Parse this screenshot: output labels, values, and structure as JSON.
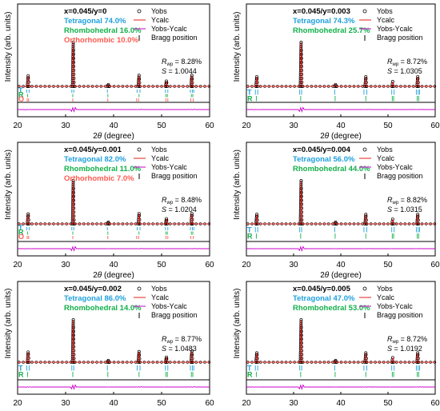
{
  "colors": {
    "obs": "#000000",
    "calc": "#e0201b",
    "diff": "#cc00cc",
    "tetragonal": "#1fa0dc",
    "rhombohedral": "#12b04a",
    "orthorhombic": "#ff5a50"
  },
  "legend": {
    "obs": "Yobs",
    "calc": "Ycalc",
    "diff": "Yobs-Ycalc",
    "bragg": "Bragg position"
  },
  "axis": {
    "ylabel": "Intensity (arb. units)",
    "xlabel_theta": "θ",
    "xlabel_prefix": "2",
    "xlabel_suffix": " (degree)",
    "ticks": [
      "20",
      "30",
      "40",
      "50",
      "60"
    ]
  },
  "phase_letters": {
    "T": "T",
    "R": "R",
    "O": "O"
  },
  "chart_data": [
    {
      "type": "line",
      "sample": "x=0.045/y=0",
      "x_range": [
        20,
        60
      ],
      "phases": [
        {
          "label": "Tetragonal 74.0%",
          "name": "Tetragonal",
          "fraction": 74.0
        },
        {
          "label": "Rhombohedral 16.0%",
          "name": "Rhombohedral",
          "fraction": 16.0
        },
        {
          "label": "Orthorhombic 10.0%",
          "name": "Orthorhombic",
          "fraction": 10.0
        }
      ],
      "rwp_value": "= 8.28%",
      "s_value": "= 1.0044",
      "peaks": [
        {
          "pos": 22.2,
          "height": 0.24
        },
        {
          "pos": 31.6,
          "height": 1.0
        },
        {
          "pos": 38.9,
          "height": 0.04
        },
        {
          "pos": 45.3,
          "height": 0.25
        },
        {
          "pos": 51.0,
          "height": 0.12
        },
        {
          "pos": 56.3,
          "height": 0.25
        }
      ]
    },
    {
      "type": "line",
      "sample": "x=0.045/y=0.003",
      "x_range": [
        20,
        60
      ],
      "phases": [
        {
          "label": "Tetragonal 74.3%",
          "name": "Tetragonal",
          "fraction": 74.3
        },
        {
          "label": "Rhombohedral 25.7%",
          "name": "Rhombohedral",
          "fraction": 25.7
        }
      ],
      "rwp_value": "= 8.72%",
      "s_value": "= 1.0305",
      "peaks": [
        {
          "pos": 22.2,
          "height": 0.22
        },
        {
          "pos": 31.6,
          "height": 1.0
        },
        {
          "pos": 38.9,
          "height": 0.04
        },
        {
          "pos": 45.3,
          "height": 0.22
        },
        {
          "pos": 51.0,
          "height": 0.11
        },
        {
          "pos": 56.3,
          "height": 0.22
        }
      ]
    },
    {
      "type": "line",
      "sample": "x=0.045/y=0.001",
      "x_range": [
        20,
        60
      ],
      "phases": [
        {
          "label": "Tetragonal 82.0%",
          "name": "Tetragonal",
          "fraction": 82.0
        },
        {
          "label": "Rhombohedral 11.0%",
          "name": "Rhombohedral",
          "fraction": 11.0
        },
        {
          "label": "Orthorhombic 7.0%",
          "name": "Orthorhombic",
          "fraction": 7.0
        }
      ],
      "rwp_value": "= 8.48%",
      "s_value": "= 1.0204",
      "peaks": [
        {
          "pos": 22.2,
          "height": 0.23
        },
        {
          "pos": 31.6,
          "height": 1.0
        },
        {
          "pos": 38.9,
          "height": 0.04
        },
        {
          "pos": 45.3,
          "height": 0.24
        },
        {
          "pos": 51.0,
          "height": 0.12
        },
        {
          "pos": 56.3,
          "height": 0.24
        }
      ]
    },
    {
      "type": "line",
      "sample": "x=0.045/y=0.004",
      "x_range": [
        20,
        60
      ],
      "phases": [
        {
          "label": "Tetragonal 56.0%",
          "name": "Tetragonal",
          "fraction": 56.0
        },
        {
          "label": "Rhombohedral 44.0%",
          "name": "Rhombohedral",
          "fraction": 44.0
        }
      ],
      "rwp_value": "= 8.82%",
      "s_value": "= 1.0315",
      "peaks": [
        {
          "pos": 22.2,
          "height": 0.22
        },
        {
          "pos": 31.6,
          "height": 1.0
        },
        {
          "pos": 38.9,
          "height": 0.04
        },
        {
          "pos": 45.3,
          "height": 0.22
        },
        {
          "pos": 51.0,
          "height": 0.11
        },
        {
          "pos": 56.3,
          "height": 0.22
        }
      ]
    },
    {
      "type": "line",
      "sample": "x=0.045/y=0.002",
      "x_range": [
        20,
        60
      ],
      "phases": [
        {
          "label": "Tetragonal 86.0%",
          "name": "Tetragonal",
          "fraction": 86.0
        },
        {
          "label": "Rhombohedral 14.0%",
          "name": "Rhombohedral",
          "fraction": 14.0
        }
      ],
      "rwp_value": "= 8.77%",
      "s_value": "= 1.0483",
      "peaks": [
        {
          "pos": 22.2,
          "height": 0.24
        },
        {
          "pos": 31.6,
          "height": 1.0
        },
        {
          "pos": 38.9,
          "height": 0.04
        },
        {
          "pos": 45.3,
          "height": 0.25
        },
        {
          "pos": 51.0,
          "height": 0.12
        },
        {
          "pos": 56.3,
          "height": 0.26
        }
      ]
    },
    {
      "type": "line",
      "sample": "x=0.045/y=0.005",
      "x_range": [
        20,
        60
      ],
      "phases": [
        {
          "label": "Tetragonal 47.0%",
          "name": "Tetragonal",
          "fraction": 47.0
        },
        {
          "label": "Rhombohedral 53.0%",
          "name": "Rhombohedral",
          "fraction": 53.0
        }
      ],
      "rwp_value": "= 8.72%",
      "s_value": "= 1.0192",
      "peaks": [
        {
          "pos": 22.2,
          "height": 0.22
        },
        {
          "pos": 31.6,
          "height": 1.0
        },
        {
          "pos": 38.9,
          "height": 0.04
        },
        {
          "pos": 45.3,
          "height": 0.22
        },
        {
          "pos": 51.0,
          "height": 0.11
        },
        {
          "pos": 56.3,
          "height": 0.22
        }
      ]
    }
  ]
}
